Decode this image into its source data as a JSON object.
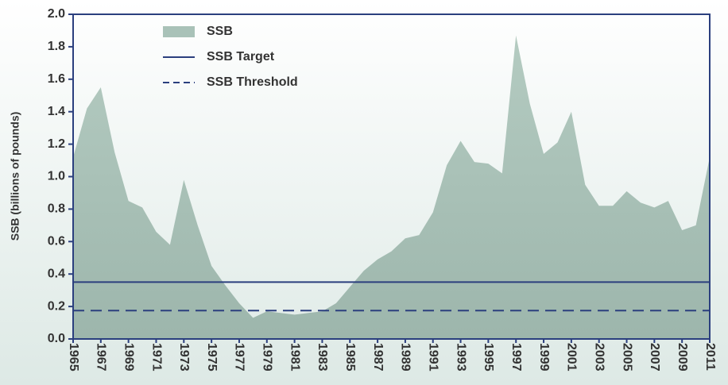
{
  "chart_data": {
    "type": "area",
    "y_label": "SSB (billions of pounds)",
    "x": [
      1965,
      1966,
      1967,
      1968,
      1969,
      1970,
      1971,
      1972,
      1973,
      1974,
      1975,
      1976,
      1977,
      1978,
      1979,
      1980,
      1981,
      1982,
      1983,
      1984,
      1985,
      1986,
      1987,
      1988,
      1989,
      1990,
      1991,
      1992,
      1993,
      1994,
      1995,
      1996,
      1997,
      1998,
      1999,
      2000,
      2001,
      2002,
      2003,
      2004,
      2005,
      2006,
      2007,
      2008,
      2009,
      2010,
      2011
    ],
    "series": [
      {
        "name": "SSB",
        "color": "#a9c2b8",
        "values": [
          1.12,
          1.42,
          1.55,
          1.15,
          0.85,
          0.81,
          0.66,
          0.58,
          0.98,
          0.7,
          0.45,
          0.33,
          0.22,
          0.13,
          0.17,
          0.16,
          0.15,
          0.16,
          0.17,
          0.22,
          0.32,
          0.42,
          0.49,
          0.54,
          0.62,
          0.64,
          0.78,
          1.07,
          1.22,
          1.09,
          1.08,
          1.02,
          1.87,
          1.45,
          1.14,
          1.21,
          1.4,
          0.95,
          0.82,
          0.82,
          0.91,
          0.84,
          0.81,
          0.85,
          0.67,
          0.7,
          1.12
        ]
      }
    ],
    "reference_lines": [
      {
        "name": "SSB Target",
        "value": 0.35,
        "style": "solid",
        "color": "#2b3f7e"
      },
      {
        "name": "SSB Threshold",
        "value": 0.175,
        "style": "dashed",
        "color": "#2b3f7e"
      }
    ],
    "xlim": [
      1965,
      2011
    ],
    "xticks": [
      1965,
      1967,
      1969,
      1971,
      1973,
      1975,
      1977,
      1979,
      1981,
      1983,
      1985,
      1987,
      1989,
      1991,
      1993,
      1995,
      1997,
      1999,
      2001,
      2003,
      2005,
      2007,
      2009,
      2011
    ],
    "ylim": [
      0,
      2
    ],
    "yticks": [
      {
        "value": 0,
        "label": "0.0"
      },
      0.2,
      0.4,
      0.6,
      0.8,
      {
        "value": 1,
        "label": "1.0"
      },
      1.2,
      1.4,
      1.6,
      1.8,
      {
        "value": 2,
        "label": "2.0"
      }
    ],
    "legend": "top-left"
  }
}
